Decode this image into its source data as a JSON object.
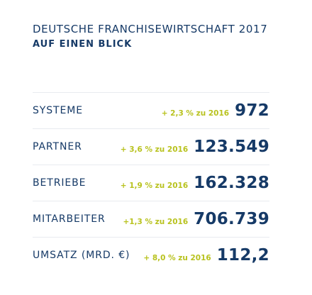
{
  "header": {
    "title": "DEUTSCHE FRANCHISEWIRTSCHAFT 2017",
    "subtitle": "AUF EINEN BLICK"
  },
  "stats": [
    {
      "label": "SYSTEME",
      "change": "+ 2,3 % zu 2016",
      "value": "972"
    },
    {
      "label": "PARTNER",
      "change": "+ 3,6 % zu 2016",
      "value": "123.549"
    },
    {
      "label": "BETRIEBE",
      "change": "+ 1,9 % zu 2016",
      "value": "162.328"
    },
    {
      "label": "MITARBEITER",
      "change": "+1,3 % zu 2016",
      "value": "706.739"
    },
    {
      "label": "UMSATZ (MRD. €)",
      "change": "+ 8,0 % zu 2016",
      "value": "112,2"
    }
  ],
  "colors": {
    "primary": "#163a67",
    "accent": "#b8c21e",
    "divider": "#e8ebef"
  }
}
